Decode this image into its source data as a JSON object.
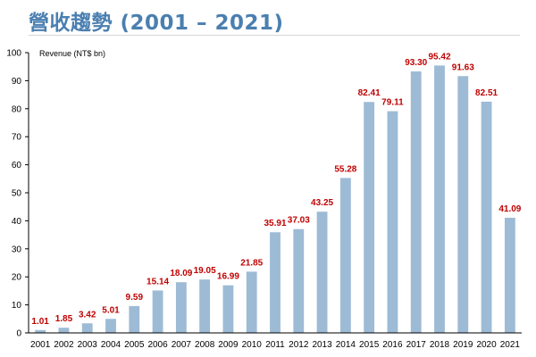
{
  "title": "營收趨勢 (2001 – 2021)",
  "colors": {
    "bar": "#9dbbd5",
    "label": "#c00000",
    "title": "#4a7fb0",
    "axis": "#000000"
  },
  "chart_data": {
    "type": "bar",
    "title": "營收趨勢 (2001 – 2021)",
    "xlabel": "",
    "ylabel": "Revenue (NT$ bn)",
    "ylim": [
      0,
      100
    ],
    "yticks": [
      0,
      10,
      20,
      30,
      40,
      50,
      60,
      70,
      80,
      90,
      100
    ],
    "grid": false,
    "categories": [
      "2001",
      "2002",
      "2003",
      "2004",
      "2005",
      "2006",
      "2007",
      "2008",
      "2009",
      "2010",
      "2011",
      "2012",
      "2013",
      "2014",
      "2015",
      "2016",
      "2017",
      "2018",
      "2019",
      "2020",
      "2021"
    ],
    "values": [
      1.01,
      1.85,
      3.42,
      5.01,
      9.59,
      15.14,
      18.09,
      19.05,
      16.99,
      21.85,
      35.91,
      37.03,
      43.25,
      55.28,
      82.41,
      79.11,
      93.3,
      95.42,
      91.63,
      82.51,
      41.09
    ],
    "labels": [
      "1.01",
      "1.85",
      "3.42",
      "5.01",
      "9.59",
      "15.14",
      "18.09",
      "19.05",
      "16.99",
      "21.85",
      "35.91",
      "37.03",
      "43.25",
      "55.28",
      "82.41",
      "79.11",
      "93.30",
      "95.42",
      "91.63",
      "82.51",
      "41.09"
    ]
  }
}
